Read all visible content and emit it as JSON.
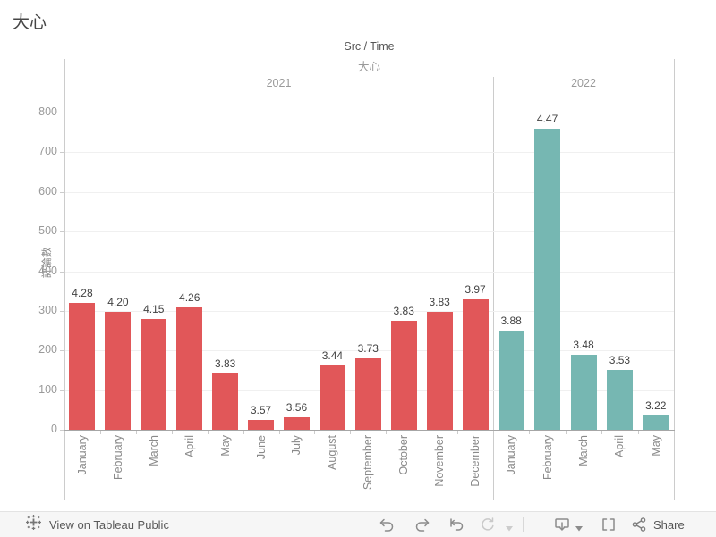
{
  "page_title": "大心",
  "header": {
    "column_field": "Src / Time",
    "column_value": "大心"
  },
  "y_axis": {
    "title": "評論數",
    "ticks": [
      0,
      100,
      200,
      300,
      400,
      500,
      600,
      700,
      800
    ]
  },
  "chart_data": {
    "type": "bar",
    "title": "Src / Time",
    "subtitle": "大心",
    "xlabel": "",
    "ylabel": "評論數",
    "ylim": [
      0,
      840
    ],
    "grid": true,
    "legend": "none",
    "series": [
      {
        "name": "2021",
        "color": "#e15759",
        "categories": [
          "January",
          "February",
          "March",
          "April",
          "May",
          "June",
          "July",
          "August",
          "September",
          "October",
          "November",
          "December"
        ],
        "values": [
          320,
          298,
          280,
          309,
          143,
          25,
          32,
          162,
          180,
          275,
          298,
          330
        ],
        "bar_labels": [
          "4.28",
          "4.20",
          "4.15",
          "4.26",
          "3.83",
          "3.57",
          "3.56",
          "3.44",
          "3.73",
          "3.83",
          "3.83",
          "3.97"
        ]
      },
      {
        "name": "2022",
        "color": "#76b7b2",
        "categories": [
          "January",
          "February",
          "March",
          "April",
          "May"
        ],
        "values": [
          250,
          760,
          190,
          150,
          35
        ],
        "bar_labels": [
          "3.88",
          "4.47",
          "3.48",
          "3.53",
          "3.22"
        ]
      }
    ]
  },
  "footer": {
    "view_text": "View on Tableau Public",
    "share_label": "Share",
    "icons": [
      "tableau-logo",
      "undo-icon",
      "redo-icon",
      "reset-icon",
      "refresh-icon",
      "download-icon",
      "fullscreen-icon",
      "share-icon"
    ]
  },
  "colors": {
    "bar_2021": "#e15759",
    "bar_2022": "#76b7b2",
    "gridline": "#f0f0f0",
    "border": "#cccccc",
    "axis_text": "#9a9a9a",
    "footer_bg": "#f6f6f6"
  }
}
